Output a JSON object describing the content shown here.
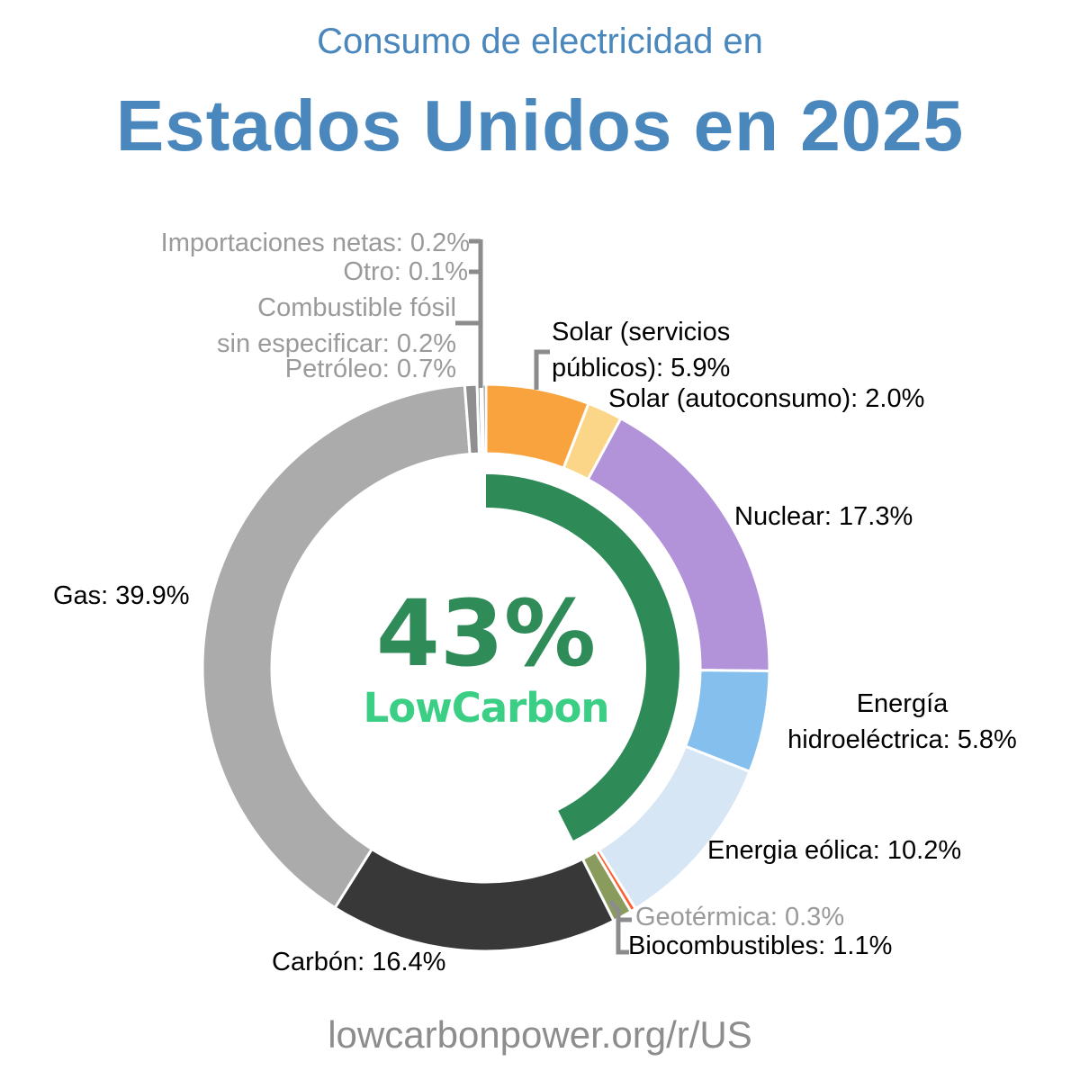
{
  "title": {
    "line1": "Consumo de electricidad en",
    "line2": "Estados Unidos en 2025"
  },
  "center": {
    "percent": "43%",
    "brand": "LowCarbon"
  },
  "footer": {
    "url": "lowcarbonpower.org/r/US"
  },
  "colors": {
    "title_blue": "#4a87bd",
    "percent_green": "#2f8b57",
    "brand_green": "#3bce85",
    "lowcarbon_arc": "#2e8b57",
    "gray_label": "#9a9a9a",
    "black_label": "#000000",
    "leader_line": "#8c8c8c",
    "footer_gray": "#8d8d8d",
    "segment_gap": "#ffffff"
  },
  "labels": {
    "net_imports": "Importaciones netas: 0.2%",
    "other": "Otro: 0.1%",
    "fossil_unspecified_line1": "Combustible fósil",
    "fossil_unspecified_line2": "sin especificar: 0.2%",
    "oil": "Petróleo: 0.7%",
    "solar_utility_line1": "Solar (servicios",
    "solar_utility_line2": "públicos): 5.9%",
    "solar_self": "Solar (autoconsumo): 2.0%",
    "nuclear": "Nuclear: 17.3%",
    "hydro_line1": "Energía",
    "hydro_line2": "hidroeléctrica: 5.8%",
    "wind": "Energia eólica: 10.2%",
    "geothermal": "Geotérmica: 0.3%",
    "biofuels": "Biocombustibles: 1.1%",
    "coal": "Carbón: 16.4%",
    "gas": "Gas: 39.9%"
  },
  "chart_data": {
    "type": "pie",
    "subtype": "donut",
    "title": "Consumo de electricidad en Estados Unidos en 2025",
    "units": "%",
    "low_carbon_share": 43,
    "center_label": "43% LowCarbon",
    "source": "lowcarbonpower.org/r/US",
    "start_angle_deg": 0,
    "direction": "clockwise",
    "segments": [
      {
        "id": "solar-utility",
        "label": "Solar (servicios públicos)",
        "value": 5.9,
        "color": "#f9a33e",
        "low_carbon": true
      },
      {
        "id": "solar-self",
        "label": "Solar (autoconsumo)",
        "value": 2.0,
        "color": "#fbd688",
        "low_carbon": true
      },
      {
        "id": "nuclear",
        "label": "Nuclear",
        "value": 17.3,
        "color": "#b292d9",
        "low_carbon": true
      },
      {
        "id": "hydro",
        "label": "Energía hidroeléctrica",
        "value": 5.8,
        "color": "#85bfee",
        "low_carbon": true
      },
      {
        "id": "wind",
        "label": "Energia eólica",
        "value": 10.2,
        "color": "#d7e6f5",
        "low_carbon": true
      },
      {
        "id": "geothermal",
        "label": "Geotérmica",
        "value": 0.3,
        "color": "#fd5c2e",
        "low_carbon": true
      },
      {
        "id": "biofuels",
        "label": "Biocombustibles",
        "value": 1.1,
        "color": "#8a9b5e",
        "low_carbon": true
      },
      {
        "id": "coal",
        "label": "Carbón",
        "value": 16.4,
        "color": "#383838",
        "low_carbon": false
      },
      {
        "id": "gas",
        "label": "Gas",
        "value": 39.9,
        "color": "#ababab",
        "low_carbon": false
      },
      {
        "id": "oil",
        "label": "Petróleo",
        "value": 0.7,
        "color": "#8f8f8f",
        "low_carbon": false
      },
      {
        "id": "fossil-unspecified",
        "label": "Combustible fósil sin especificar",
        "value": 0.2,
        "color": "#7a7a7a",
        "low_carbon": false
      },
      {
        "id": "other",
        "label": "Otro",
        "value": 0.1,
        "color": "#a6a6a6",
        "low_carbon": false
      },
      {
        "id": "net-imports",
        "label": "Importaciones netas",
        "value": 0.2,
        "color": "#6e6e6e",
        "low_carbon": false
      }
    ]
  }
}
